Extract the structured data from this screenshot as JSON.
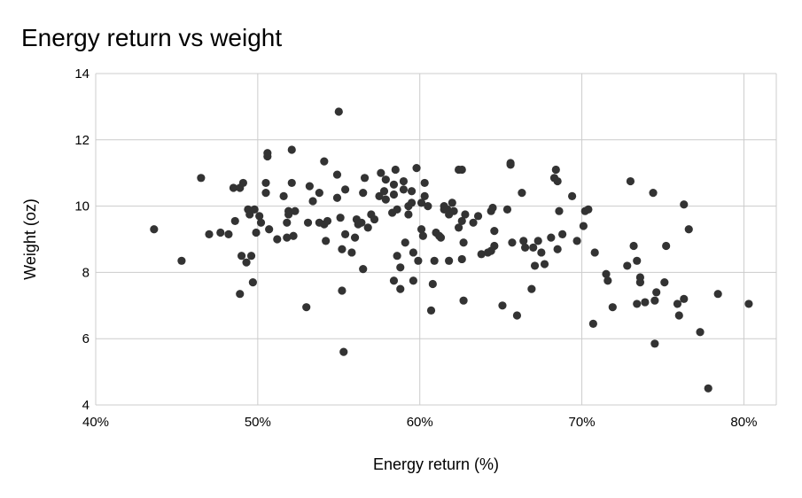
{
  "chart_data": {
    "type": "scatter",
    "title": "Energy return vs weight",
    "xlabel": "Energy return (%)",
    "ylabel": "Weight (oz)",
    "xlim": [
      40,
      82
    ],
    "ylim": [
      4,
      14
    ],
    "xticks": [
      40,
      50,
      60,
      70,
      80
    ],
    "xtick_labels": [
      "40%",
      "50%",
      "60%",
      "70%",
      "80%"
    ],
    "yticks": [
      4,
      6,
      8,
      10,
      12,
      14
    ],
    "ytick_labels": [
      "4",
      "6",
      "8",
      "10",
      "12",
      "14"
    ],
    "grid": true,
    "legend": "none",
    "colors": {
      "points": "#333333",
      "grid": "#cccccc"
    },
    "points": [
      [
        43.6,
        9.3
      ],
      [
        45.3,
        8.35
      ],
      [
        46.5,
        10.85
      ],
      [
        47.0,
        9.15
      ],
      [
        47.7,
        9.2
      ],
      [
        48.2,
        9.15
      ],
      [
        48.6,
        9.55
      ],
      [
        48.5,
        10.55
      ],
      [
        48.9,
        10.55
      ],
      [
        49.1,
        10.7
      ],
      [
        48.9,
        7.35
      ],
      [
        49.0,
        8.5
      ],
      [
        49.4,
        9.9
      ],
      [
        49.3,
        8.3
      ],
      [
        49.5,
        9.75
      ],
      [
        49.6,
        8.5
      ],
      [
        49.8,
        9.9
      ],
      [
        49.7,
        7.7
      ],
      [
        49.9,
        9.2
      ],
      [
        50.1,
        9.7
      ],
      [
        50.2,
        9.5
      ],
      [
        50.5,
        10.4
      ],
      [
        50.5,
        10.7
      ],
      [
        50.6,
        11.5
      ],
      [
        50.6,
        11.6
      ],
      [
        50.7,
        9.3
      ],
      [
        51.2,
        9.0
      ],
      [
        51.6,
        10.3
      ],
      [
        51.8,
        9.5
      ],
      [
        51.8,
        9.05
      ],
      [
        51.9,
        9.85
      ],
      [
        51.9,
        9.75
      ],
      [
        52.1,
        11.7
      ],
      [
        52.1,
        10.7
      ],
      [
        52.2,
        9.1
      ],
      [
        52.3,
        9.85
      ],
      [
        53.0,
        6.95
      ],
      [
        53.1,
        9.5
      ],
      [
        53.2,
        10.6
      ],
      [
        53.4,
        10.15
      ],
      [
        53.8,
        10.4
      ],
      [
        53.8,
        9.5
      ],
      [
        54.1,
        9.45
      ],
      [
        54.1,
        11.35
      ],
      [
        54.2,
        8.95
      ],
      [
        54.3,
        9.55
      ],
      [
        54.9,
        10.25
      ],
      [
        54.9,
        10.95
      ],
      [
        55.0,
        12.85
      ],
      [
        55.1,
        9.65
      ],
      [
        55.2,
        7.45
      ],
      [
        55.2,
        8.7
      ],
      [
        55.4,
        9.15
      ],
      [
        55.3,
        5.6
      ],
      [
        55.4,
        10.5
      ],
      [
        55.8,
        8.6
      ],
      [
        56.0,
        9.05
      ],
      [
        56.1,
        9.6
      ],
      [
        56.2,
        9.45
      ],
      [
        56.4,
        9.5
      ],
      [
        56.5,
        10.4
      ],
      [
        56.5,
        8.1
      ],
      [
        56.6,
        10.85
      ],
      [
        56.8,
        9.35
      ],
      [
        57.0,
        9.75
      ],
      [
        57.2,
        9.6
      ],
      [
        57.5,
        10.3
      ],
      [
        57.6,
        11.0
      ],
      [
        57.8,
        10.45
      ],
      [
        57.9,
        10.2
      ],
      [
        57.9,
        10.8
      ],
      [
        58.3,
        9.8
      ],
      [
        58.4,
        10.65
      ],
      [
        58.4,
        10.35
      ],
      [
        58.4,
        7.75
      ],
      [
        58.5,
        11.1
      ],
      [
        58.6,
        8.5
      ],
      [
        58.6,
        9.9
      ],
      [
        58.8,
        7.5
      ],
      [
        58.8,
        8.15
      ],
      [
        59.0,
        10.75
      ],
      [
        59.0,
        10.5
      ],
      [
        59.1,
        8.9
      ],
      [
        59.3,
        10.0
      ],
      [
        59.3,
        9.75
      ],
      [
        59.5,
        10.45
      ],
      [
        59.5,
        10.1
      ],
      [
        59.6,
        8.6
      ],
      [
        59.6,
        7.75
      ],
      [
        59.8,
        11.15
      ],
      [
        59.9,
        8.35
      ],
      [
        60.1,
        9.3
      ],
      [
        60.1,
        10.1
      ],
      [
        60.2,
        9.1
      ],
      [
        60.3,
        10.7
      ],
      [
        60.3,
        10.3
      ],
      [
        60.5,
        10.0
      ],
      [
        60.7,
        6.85
      ],
      [
        60.8,
        7.65
      ],
      [
        60.9,
        8.35
      ],
      [
        61.0,
        9.2
      ],
      [
        61.2,
        9.1
      ],
      [
        61.3,
        9.05
      ],
      [
        61.5,
        9.9
      ],
      [
        61.5,
        10.0
      ],
      [
        61.7,
        9.9
      ],
      [
        61.8,
        9.75
      ],
      [
        61.8,
        8.35
      ],
      [
        62.0,
        10.1
      ],
      [
        62.1,
        9.85
      ],
      [
        62.4,
        9.35
      ],
      [
        62.4,
        11.1
      ],
      [
        62.6,
        11.1
      ],
      [
        62.6,
        8.4
      ],
      [
        62.6,
        9.55
      ],
      [
        62.7,
        8.9
      ],
      [
        62.7,
        7.15
      ],
      [
        62.8,
        9.75
      ],
      [
        63.3,
        9.5
      ],
      [
        63.6,
        9.7
      ],
      [
        63.8,
        8.55
      ],
      [
        64.2,
        8.6
      ],
      [
        64.4,
        8.65
      ],
      [
        64.4,
        9.85
      ],
      [
        64.5,
        9.95
      ],
      [
        64.6,
        9.25
      ],
      [
        64.6,
        8.8
      ],
      [
        65.1,
        7.0
      ],
      [
        65.4,
        9.9
      ],
      [
        65.6,
        11.25
      ],
      [
        65.6,
        11.3
      ],
      [
        65.7,
        8.9
      ],
      [
        66.0,
        6.7
      ],
      [
        66.3,
        10.4
      ],
      [
        66.4,
        8.95
      ],
      [
        66.5,
        8.75
      ],
      [
        66.9,
        7.5
      ],
      [
        67.0,
        8.75
      ],
      [
        67.1,
        8.2
      ],
      [
        67.3,
        8.95
      ],
      [
        67.5,
        8.6
      ],
      [
        67.7,
        8.25
      ],
      [
        68.1,
        9.05
      ],
      [
        68.3,
        10.85
      ],
      [
        68.4,
        11.1
      ],
      [
        68.5,
        10.75
      ],
      [
        68.5,
        8.7
      ],
      [
        68.6,
        9.85
      ],
      [
        68.8,
        9.15
      ],
      [
        69.4,
        10.3
      ],
      [
        69.7,
        8.95
      ],
      [
        70.1,
        9.4
      ],
      [
        70.2,
        9.85
      ],
      [
        70.4,
        9.9
      ],
      [
        70.7,
        6.45
      ],
      [
        70.8,
        8.6
      ],
      [
        71.5,
        7.95
      ],
      [
        71.6,
        7.75
      ],
      [
        71.9,
        6.95
      ],
      [
        72.8,
        8.2
      ],
      [
        73.0,
        10.75
      ],
      [
        73.2,
        8.8
      ],
      [
        73.4,
        7.05
      ],
      [
        73.4,
        8.35
      ],
      [
        73.6,
        7.7
      ],
      [
        73.6,
        7.85
      ],
      [
        73.9,
        7.1
      ],
      [
        74.4,
        10.4
      ],
      [
        74.5,
        7.15
      ],
      [
        74.5,
        5.85
      ],
      [
        74.6,
        7.4
      ],
      [
        75.1,
        7.7
      ],
      [
        75.2,
        8.8
      ],
      [
        75.9,
        7.05
      ],
      [
        76.0,
        6.7
      ],
      [
        76.3,
        10.05
      ],
      [
        76.3,
        7.2
      ],
      [
        76.6,
        9.3
      ],
      [
        77.3,
        6.2
      ],
      [
        77.8,
        4.5
      ],
      [
        78.4,
        7.35
      ],
      [
        80.3,
        7.05
      ]
    ]
  }
}
